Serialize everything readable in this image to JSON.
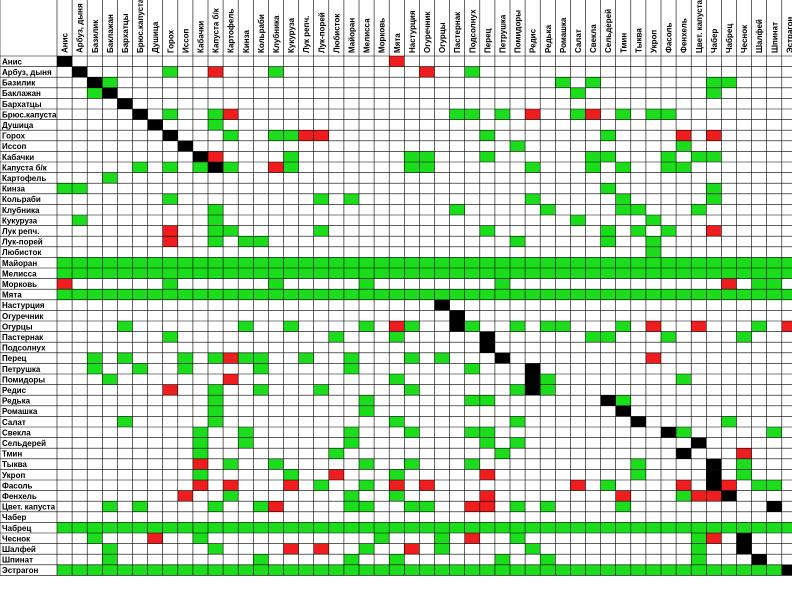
{
  "chart_data": {
    "type": "heatmap",
    "title": "",
    "legend": "none",
    "colors": {
      "good": "#1cdd1c",
      "bad": "#ef1d1d",
      "self": "#000000",
      "neutral": "#ffffff",
      "grid": "#000000"
    },
    "value_key": {
      "g": "good",
      "b": "bad",
      "x": "self",
      ".": "neutral"
    },
    "rows": [
      "Анис",
      "Арбуз, дыня",
      "Базилик",
      "Баклажан",
      "Бархатцы",
      "Брюс.капуста",
      "Душица",
      "Горох",
      "Иссоп",
      "Кабачки",
      "Капуста б/к",
      "Картофель",
      "Кинза",
      "Кольраби",
      "Клубника",
      "Кукуруза",
      "Лук репч.",
      "Лук-порей",
      "Любисток",
      "Майоран",
      "Мелисса",
      "Морковь",
      "Мята",
      "Настурция",
      "Огуречник",
      "Огурцы",
      "Пастернак",
      "Подсолнух",
      "Перец",
      "Петрушка",
      "Помидоры",
      "Редис",
      "Редька",
      "Ромашка",
      "Салат",
      "Свекла",
      "Сельдерей",
      "Тмин",
      "Тыква",
      "Укроп",
      "Фасоль",
      "Фенхель",
      "Цвет. капуста",
      "Чабер",
      "Чабрец",
      "Чеснок",
      "Шалфей",
      "Шпинат",
      "Эстрагон"
    ],
    "columns": [
      "Анис",
      "Арбуз, дыня",
      "Базилик",
      "Баклажан",
      "Бархатцы",
      "Брюс.капуста",
      "Душица",
      "Горох",
      "Иссоп",
      "Кабачки",
      "Капуста б/к",
      "Картофель",
      "Кинза",
      "Кольраби",
      "Клубника",
      "Кукуруза",
      "Лук репч.",
      "Лук-порей",
      "Любисток",
      "Майоран",
      "Мелисса",
      "Морковь",
      "Мята",
      "Настурция",
      "Огуречник",
      "Огурцы",
      "Пастернак",
      "Подсолнух",
      "Перец",
      "Петрушка",
      "Помидоры",
      "Редис",
      "Редька",
      "Ромашка",
      "Салат",
      "Свекла",
      "Сельдерей",
      "Тмин",
      "Тыква",
      "Укроп",
      "Фасоль",
      "Фенхель",
      "Цвет. капуста",
      "Чабер",
      "Чабрец",
      "Чеснок",
      "Шалфей",
      "Шпинат",
      "Эстрагон"
    ],
    "matrix": [
      "x.....................b..........................",
      ".x.....g..b...g.........b..g....................",
      "..xg.............................g.g.......gg....",
      "..gx..............................g........g.....g",
      "....x............................................",
      ".....x.g..gb..............gg.g.b..gb.g.gg........",
      "......x...g......................................",
      ".......x...g..ggbb..........g.......g....b.b.....",
      "........x.....................g..........g.......",
      ".........xb....g.......gg...g......gg...g.gg......",
      ".....g.g.gxg..bg.......gg......g...g.g..gg......",
      "...g.........................................",
      "gg..................................g......g.....",
      ".......g.........g.g...........g.....g.....g.....",
      "..........g...............g.....g....gg...g......",
      ".g........g.......................g....g.........",
      ".......b..gg.....g..........g.......g.g.g..b.....",
      ".......b..g.gg................g.....g..g.........",
      ".......................................g.........",
      "ggggggggggggggggggggggggggggggggggggggggggggggggg",
      "ggggggggggggggggggggggggggggggggggggggggggggggggg",
      "b......g......g.....g........g..............b.gg.",
      "ggggggggggggggggggggggggggggggggggggggggggggggggg",
      ".........................x......................",
      "..........................x......................",
      "....g.......g..g....g.bg..xg..g.gg...g.b..b...g.b",
      ".......g..........g...g.....x......gg...g....g....",
      "............................x.......................",
      "..g.g...g.gbgg..g..g...g.g...x.........b.........",
      "..g..g..g....g.....g.......g...x.................",
      "...g.......b..........g........xg........g.......",
      ".......b..g..g...g.....g......gxg................",
      "..........g.........g......gg.......xg..........",
      "..........g.........g................x..........",
      "....g.....g...........g.......g.......x.....g.....",
      ".........g..g......g...g...gg...........xg.....g...",
      ".........g..g......g........g.g...........x.......",
      ".........g........g..........g...........x...b....",
      ".........b.g..g.....g..g...g..........g....x.g...",
      ".........g.....g..b...g.....b.........g....x.g....",
      ".........b.b...b.g..g.b.b.........b.g....b.xb.gg..",
      "........b..g.......g..g.....b........b...gbbx....",
      "...g.g....g..gb....gg..gg..bb.g.g....g.........x.",
      "........................................................x",
      "ggggggggggggggggggggggggggggggggggggggggggggggggg",
      "..g...b..g...........g...g.b..g...........gb.x..",
      "...g......g....b.b..g..b.g.....g..........g..x.",
      "...g.........g.....g..g......g..g.........g...x.",
      "ggggggggggggggggggggggggggggggggggggggggggggggggx"
    ]
  }
}
